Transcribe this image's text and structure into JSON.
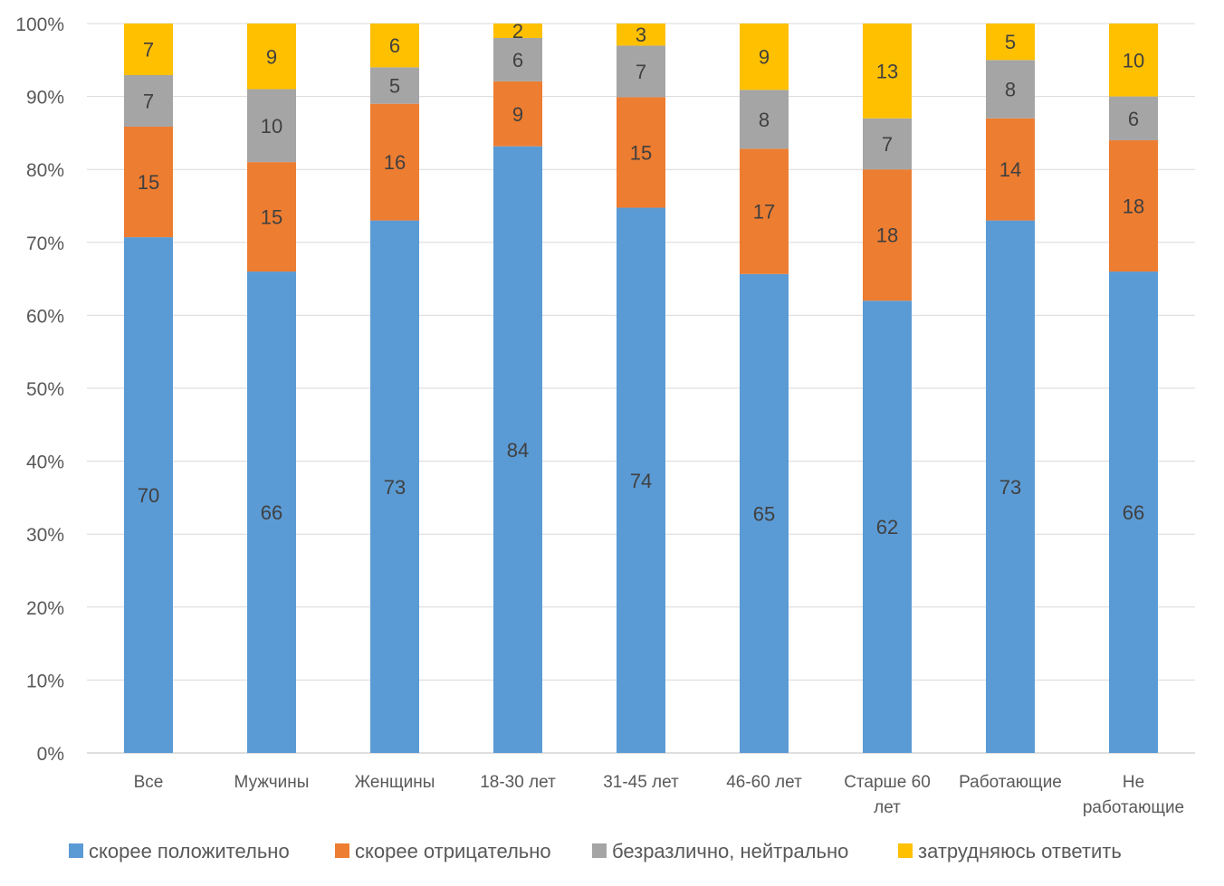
{
  "chart_data": {
    "type": "bar",
    "stacked": "percent",
    "categories": [
      [
        "Все"
      ],
      [
        "Мужчины"
      ],
      [
        "Женщины"
      ],
      [
        "18-30 лет"
      ],
      [
        "31-45 лет"
      ],
      [
        "46-60 лет"
      ],
      [
        "Старше 60",
        "лет"
      ],
      [
        "Работающие"
      ],
      [
        "Не",
        "работающие"
      ]
    ],
    "series": [
      {
        "name": "скорее положительно",
        "color": "#5B9BD5",
        "values": [
          70,
          66,
          73,
          84,
          74,
          65,
          62,
          73,
          66
        ]
      },
      {
        "name": "скорее отрицательно",
        "color": "#ED7D31",
        "values": [
          15,
          15,
          16,
          9,
          15,
          17,
          18,
          14,
          18
        ]
      },
      {
        "name": "безразлично, нейтрально",
        "color": "#A5A5A5",
        "values": [
          7,
          10,
          5,
          6,
          7,
          8,
          7,
          8,
          6
        ]
      },
      {
        "name": "затрудняюсь ответить",
        "color": "#FFC000",
        "values": [
          7,
          9,
          6,
          2,
          3,
          9,
          13,
          5,
          10
        ]
      }
    ],
    "y_ticks": [
      "0%",
      "10%",
      "20%",
      "30%",
      "40%",
      "50%",
      "60%",
      "70%",
      "80%",
      "90%",
      "100%"
    ],
    "ylim": [
      0,
      100
    ],
    "grid": true,
    "legend_position": "bottom"
  }
}
